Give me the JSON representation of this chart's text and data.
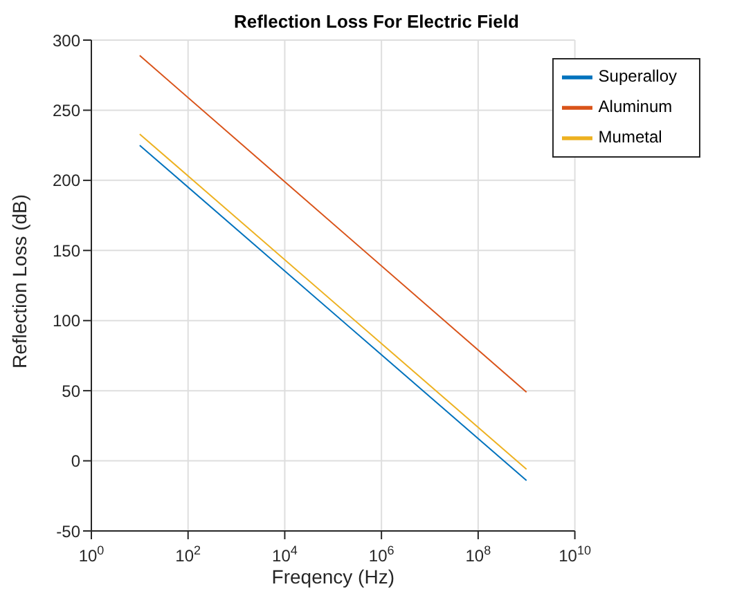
{
  "chart_data": {
    "type": "line",
    "title": "Reflection Loss For Electric Field",
    "xlabel": "Freqency (Hz)",
    "ylabel": "Reflection Loss (dB)",
    "log": "x",
    "grid": true,
    "legend": "top right",
    "marker": "none",
    "line_style": "solid",
    "xlim": [
      1,
      10000000000
    ],
    "xticks": [
      {
        "value": 1,
        "label": "10$^{0}$"
      },
      {
        "value": 100,
        "label": "10$^{2}$"
      },
      {
        "value": 10000,
        "label": "10$^{4}$"
      },
      {
        "value": 1000000,
        "label": "10$^{6}$"
      },
      {
        "value": 100000000,
        "label": "10$^{8}$"
      },
      {
        "value": 10000000000,
        "label": "10$^{10}$"
      }
    ],
    "ylim": [
      -50,
      300
    ],
    "yticks": [
      -50,
      0,
      50,
      100,
      150,
      200,
      250,
      300
    ],
    "x": [
      10,
      1000000000
    ],
    "series": [
      {
        "name": "Superalloy",
        "color": "#0072bd",
        "values": [
          225,
          -14
        ]
      },
      {
        "name": "Aluminum",
        "color": "#d95319",
        "values": [
          289,
          49
        ]
      },
      {
        "name": "Mumetal",
        "color": "#edb120",
        "values": [
          233,
          -6
        ]
      }
    ]
  }
}
